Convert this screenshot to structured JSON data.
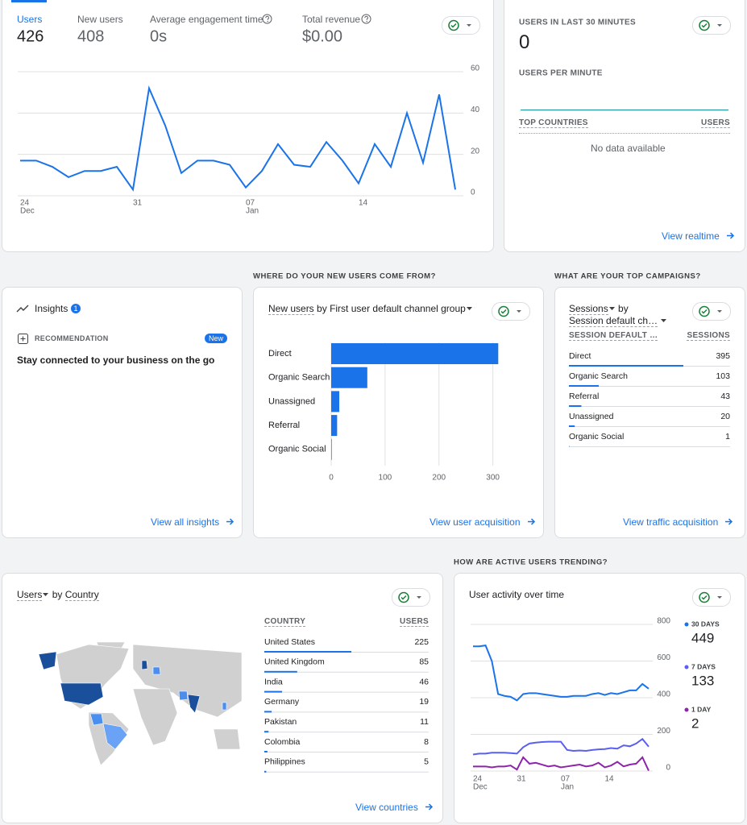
{
  "overview": {
    "metrics": [
      {
        "label": "Users",
        "value": 426
      },
      {
        "label": "New users",
        "value": 408
      },
      {
        "label": "Average engagement time",
        "value": "0s"
      },
      {
        "label": "Total revenue",
        "value": "$0.00"
      }
    ]
  },
  "realtime": {
    "title": "USERS IN LAST 30 MINUTES",
    "value": 0,
    "subtitle": "USERS PER MINUTE",
    "columns": [
      "TOP COUNTRIES",
      "USERS"
    ],
    "empty": "No data available",
    "link": "View realtime"
  },
  "section_headings": [
    "WHERE DO YOUR NEW USERS COME FROM?",
    "WHAT ARE YOUR TOP CAMPAIGNS?",
    "HOW ARE ACTIVE USERS TRENDING?"
  ],
  "insights": {
    "title": "Insights",
    "count": 1,
    "label": "RECOMMENDATION",
    "badge": "New",
    "text": "Stay connected to your business on the go",
    "link": "View all insights"
  },
  "campaigns": {
    "metric": "Sessions",
    "by": "by",
    "dimension": "Session default ch…",
    "columns": [
      "SESSION DEFAULT …",
      "SESSIONS"
    ],
    "rows": [
      [
        "Direct",
        395
      ],
      [
        "Organic Search",
        103
      ],
      [
        "Referral",
        43
      ],
      [
        "Unassigned",
        20
      ],
      [
        "Organic Social",
        1
      ]
    ],
    "color": "#1a73e8",
    "link": "View traffic acquisition"
  },
  "countries": {
    "metric": "Users",
    "by": "by",
    "dimension": "Country",
    "columns": [
      "COUNTRY",
      "USERS"
    ],
    "rows": [
      [
        "United States",
        225
      ],
      [
        "United Kingdom",
        85
      ],
      [
        "India",
        46
      ],
      [
        "Germany",
        19
      ],
      [
        "Pakistan",
        11
      ],
      [
        "Colombia",
        8
      ],
      [
        "Philippines",
        5
      ]
    ],
    "color": "#1a73e8",
    "link": "View countries"
  },
  "chart_data": [
    {
      "type": "line",
      "categories": [
        {
          "day": "24",
          "month": "Dec"
        },
        null,
        null,
        null,
        null,
        null,
        null,
        {
          "day": "31"
        },
        null,
        null,
        null,
        null,
        null,
        null,
        {
          "day": "07",
          "month": "Jan"
        },
        null,
        null,
        null,
        null,
        null,
        null,
        {
          "day": "14"
        },
        null,
        null,
        null,
        null,
        null,
        null
      ],
      "values": [
        17,
        17,
        14,
        9,
        12,
        12,
        14,
        3,
        52,
        34,
        11,
        17,
        17,
        15,
        4,
        12,
        25,
        15,
        14,
        26,
        17,
        6,
        25,
        14,
        40,
        16,
        49,
        3
      ],
      "color": "#1a73e8",
      "ylim": [
        0,
        60
      ],
      "yticks": [
        0,
        20,
        40,
        60
      ],
      "grid": true
    },
    {
      "type": "bar",
      "orientation": "horizontal",
      "title": {
        "metric": "New users",
        "by": "by",
        "dimension": "First user default channel group"
      },
      "categories": [
        "Direct",
        "Organic Search",
        "Unassigned",
        "Referral",
        "Organic Social"
      ],
      "values": [
        310,
        67,
        15,
        11,
        1
      ],
      "color": "#1a73e8",
      "xlim": [
        0,
        320
      ],
      "xticks": [
        0,
        100,
        200,
        300
      ],
      "grid": true,
      "link": "View user acquisition"
    },
    {
      "type": "line",
      "title": "User activity over time",
      "categories": [
        {
          "day": "24",
          "month": "Dec"
        },
        null,
        null,
        null,
        null,
        null,
        null,
        {
          "day": "31"
        },
        null,
        null,
        null,
        null,
        null,
        null,
        {
          "day": "07",
          "month": "Jan"
        },
        null,
        null,
        null,
        null,
        null,
        null,
        {
          "day": "14"
        },
        null,
        null,
        null,
        null,
        null,
        null,
        null
      ],
      "series": [
        {
          "name": "30 DAYS",
          "color": "#1a73e8",
          "latest": 449,
          "values": [
            680,
            680,
            685,
            600,
            420,
            410,
            405,
            385,
            420,
            425,
            425,
            420,
            415,
            410,
            405,
            405,
            410,
            410,
            410,
            420,
            425,
            415,
            425,
            420,
            430,
            440,
            440,
            475,
            449
          ]
        },
        {
          "name": "7 DAYS",
          "color": "#5b5ff0",
          "latest": 133,
          "values": [
            90,
            95,
            95,
            100,
            100,
            100,
            98,
            95,
            130,
            150,
            155,
            158,
            160,
            160,
            160,
            115,
            110,
            112,
            110,
            115,
            118,
            120,
            125,
            122,
            140,
            135,
            150,
            175,
            133
          ]
        },
        {
          "name": "1 DAY",
          "color": "#8e24aa",
          "latest": 2,
          "values": [
            25,
            25,
            25,
            20,
            25,
            25,
            30,
            8,
            75,
            40,
            45,
            35,
            25,
            30,
            20,
            25,
            30,
            35,
            25,
            30,
            45,
            20,
            30,
            50,
            25,
            35,
            40,
            75,
            2
          ]
        }
      ],
      "ylim": [
        0,
        800
      ],
      "yticks": [
        0,
        200,
        400,
        600,
        800
      ],
      "grid": true
    }
  ]
}
